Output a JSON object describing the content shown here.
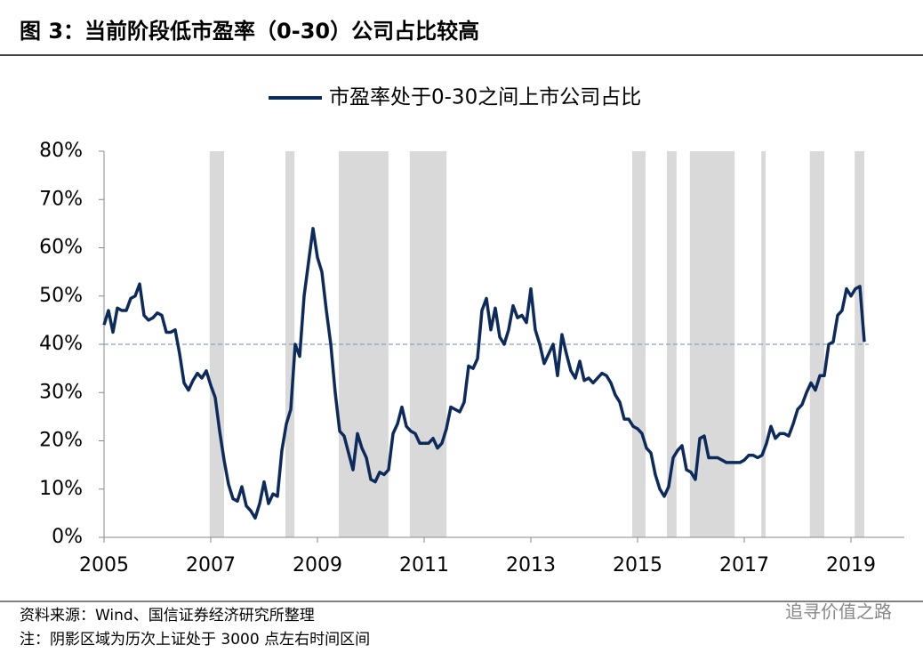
{
  "chart_data": {
    "type": "line",
    "title": "图 3：当前阶段低市盈率（0-30）公司占比较高",
    "source": "资料来源：Wind、国信证券经济研究所整理",
    "note": "注：阴影区域为历次上证处于 3000 点左右时间区间",
    "watermark": "追寻价值之路",
    "xlim": [
      2005,
      2020
    ],
    "xticks": [
      2005,
      2007,
      2009,
      2011,
      2013,
      2015,
      2017,
      2019
    ],
    "ylim": [
      0,
      80
    ],
    "yticks": [
      {
        "value": 0,
        "label": "0%"
      },
      {
        "value": 10,
        "label": "10%"
      },
      {
        "value": 20,
        "label": "20%"
      },
      {
        "value": 30,
        "label": "30%"
      },
      {
        "value": 40,
        "label": "40%"
      },
      {
        "value": 50,
        "label": "50%"
      },
      {
        "value": 60,
        "label": "60%"
      },
      {
        "value": 70,
        "label": "70%"
      },
      {
        "value": 80,
        "label": "80%"
      }
    ],
    "reference_line": 40,
    "shaded_ranges": [
      [
        2006.98,
        2007.25
      ],
      [
        2008.4,
        2008.57
      ],
      [
        2009.4,
        2010.33
      ],
      [
        2010.73,
        2011.42
      ],
      [
        2014.9,
        2015.15
      ],
      [
        2015.55,
        2015.73
      ],
      [
        2015.98,
        2016.82
      ],
      [
        2017.32,
        2017.4
      ],
      [
        2018.23,
        2018.5
      ],
      [
        2019.07,
        2019.25
      ]
    ],
    "shade_color": "#d9d9d9",
    "x": [
      2005,
      2005.083,
      2005.167,
      2005.25,
      2005.333,
      2005.417,
      2005.5,
      2005.583,
      2005.667,
      2005.75,
      2005.833,
      2005.917,
      2006,
      2006.083,
      2006.167,
      2006.25,
      2006.333,
      2006.417,
      2006.5,
      2006.583,
      2006.667,
      2006.75,
      2006.833,
      2006.917,
      2007,
      2007.083,
      2007.167,
      2007.25,
      2007.333,
      2007.417,
      2007.5,
      2007.583,
      2007.667,
      2007.75,
      2007.833,
      2007.917,
      2008,
      2008.083,
      2008.167,
      2008.25,
      2008.333,
      2008.417,
      2008.5,
      2008.583,
      2008.667,
      2008.75,
      2008.833,
      2008.917,
      2009,
      2009.083,
      2009.167,
      2009.25,
      2009.333,
      2009.417,
      2009.5,
      2009.583,
      2009.667,
      2009.75,
      2009.833,
      2009.917,
      2010,
      2010.083,
      2010.167,
      2010.25,
      2010.333,
      2010.417,
      2010.5,
      2010.583,
      2010.667,
      2010.75,
      2010.833,
      2010.917,
      2011,
      2011.083,
      2011.167,
      2011.25,
      2011.333,
      2011.417,
      2011.5,
      2011.583,
      2011.667,
      2011.75,
      2011.833,
      2011.917,
      2012,
      2012.083,
      2012.167,
      2012.25,
      2012.333,
      2012.417,
      2012.5,
      2012.583,
      2012.667,
      2012.75,
      2012.833,
      2012.917,
      2013,
      2013.083,
      2013.167,
      2013.25,
      2013.333,
      2013.417,
      2013.5,
      2013.583,
      2013.667,
      2013.75,
      2013.833,
      2013.917,
      2014,
      2014.083,
      2014.167,
      2014.25,
      2014.333,
      2014.417,
      2014.5,
      2014.583,
      2014.667,
      2014.75,
      2014.833,
      2014.917,
      2015,
      2015.083,
      2015.167,
      2015.25,
      2015.333,
      2015.417,
      2015.5,
      2015.583,
      2015.667,
      2015.75,
      2015.833,
      2015.917,
      2016,
      2016.083,
      2016.167,
      2016.25,
      2016.333,
      2016.417,
      2016.5,
      2016.583,
      2016.667,
      2016.75,
      2016.833,
      2016.917,
      2017,
      2017.083,
      2017.167,
      2017.25,
      2017.333,
      2017.417,
      2017.5,
      2017.583,
      2017.667,
      2017.75,
      2017.833,
      2017.917,
      2018,
      2018.083,
      2018.167,
      2018.25,
      2018.333,
      2018.417,
      2018.5,
      2018.583,
      2018.667,
      2018.75,
      2018.833,
      2018.917,
      2019,
      2019.083,
      2019.167,
      2019.25
    ],
    "series": [
      {
        "name": "市盈率处于0-30之间上市公司占比",
        "color": "#0d2a5c",
        "values": [
          44,
          47,
          42.5,
          47.5,
          47,
          47,
          49.5,
          50,
          52.5,
          46,
          45,
          45.5,
          46.5,
          46,
          42.5,
          42.5,
          43,
          38,
          32,
          30.5,
          32.5,
          34,
          33,
          34.5,
          31.5,
          29,
          22,
          16,
          11,
          8,
          7.5,
          10.5,
          6.5,
          5.5,
          4,
          7,
          11.5,
          7,
          9,
          8.5,
          18,
          23.5,
          26.5,
          40,
          37.5,
          50,
          57,
          64,
          58,
          55,
          47,
          40,
          30,
          22,
          21,
          17.5,
          14,
          21.5,
          18.5,
          16.5,
          12,
          11.5,
          13.5,
          13,
          14,
          21.5,
          23.5,
          27,
          23,
          22,
          21.5,
          19.5,
          19.5,
          19.5,
          20.5,
          18.5,
          19.5,
          22.5,
          27,
          26.5,
          26,
          28,
          35.5,
          35,
          37,
          47,
          49.5,
          43,
          47.5,
          41.5,
          40,
          43,
          48,
          45.5,
          46,
          44.5,
          51.5,
          43,
          40,
          36,
          38,
          40,
          33.5,
          42,
          38,
          34.5,
          33,
          36.5,
          32.5,
          33,
          32,
          33,
          34,
          33.5,
          32,
          29.5,
          28,
          24.5,
          24.5,
          23,
          22.5,
          21.5,
          18.5,
          17.5,
          13,
          10,
          8.5,
          10.5,
          16.5,
          18,
          19,
          14,
          13.5,
          12,
          20.5,
          21,
          16.5,
          16.5,
          16.5,
          16,
          15.5,
          15.5,
          15.5,
          15.5,
          16,
          17,
          17,
          16.5,
          17,
          19.5,
          23,
          20.5,
          21.5,
          21.5,
          21,
          23.5,
          26.5,
          27.5,
          30,
          32,
          30.5,
          33.5,
          33.5,
          40,
          40.5,
          46,
          47,
          51.5,
          50,
          51.5,
          52,
          40.5
        ]
      }
    ]
  }
}
